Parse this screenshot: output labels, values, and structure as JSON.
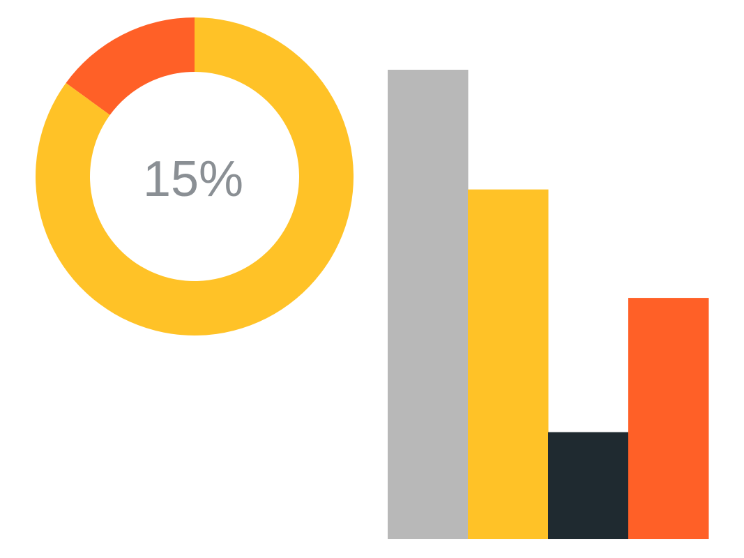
{
  "chart_data": [
    {
      "type": "pie",
      "variant": "donut",
      "center_label": "15%",
      "slices": [
        {
          "value": 15,
          "color": "#ff6027"
        },
        {
          "value": 85,
          "color": "#ffc227"
        }
      ],
      "label_color": "#8a8f94"
    },
    {
      "type": "bar",
      "categories": [
        "",
        "",
        "",
        ""
      ],
      "values": [
        100,
        74.5,
        22.8,
        51.4
      ],
      "colors": [
        "#b8b8b8",
        "#ffc227",
        "#1f2a30",
        "#ff6027"
      ],
      "ylim": [
        0,
        100
      ],
      "grid": false,
      "axes_visible": false
    }
  ]
}
